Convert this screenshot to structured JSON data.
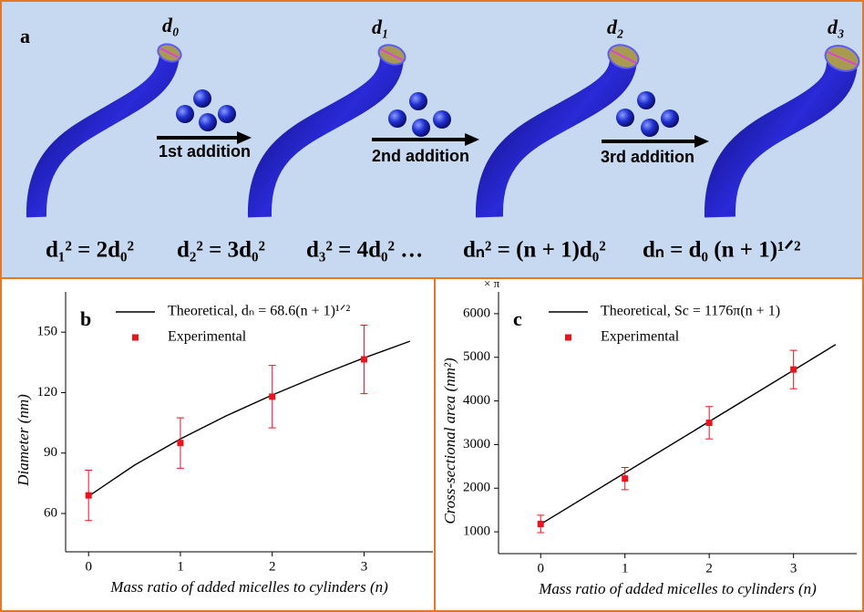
{
  "panel_a": {
    "label": "a",
    "diameters": [
      "d₀",
      "d₁",
      "d₂",
      "d₃"
    ],
    "steps": [
      "1st addition",
      "2nd addition",
      "3rd addition"
    ],
    "equations": [
      "d₁² = 2d₀²",
      "d₂² = 3d₀²",
      "d₃² = 4d₀² …",
      "dₙ² = (n + 1)d₀²",
      "dₙ = d₀ (n + 1)¹ᐟ²"
    ]
  },
  "chart_data": [
    {
      "type": "line",
      "label": "b",
      "xlabel": "Mass ratio of added micelles to cylinders (n)",
      "ylabel": "Diameter (nm)",
      "xlim": [
        -0.25,
        3.75
      ],
      "xticks": [
        0,
        1,
        2,
        3
      ],
      "ylim": [
        41,
        170
      ],
      "yticks": [
        60,
        90,
        120,
        150
      ],
      "series": [
        {
          "name": "Theoretical, dₙ = 68.6(n + 1)¹ᐟ²",
          "type": "line",
          "color": "#000000",
          "x": [
            0,
            0.5,
            1,
            1.5,
            2,
            2.5,
            3,
            3.5
          ],
          "values": [
            68.6,
            84.0,
            97.0,
            108.5,
            118.8,
            128.3,
            137.2,
            145.5
          ]
        },
        {
          "name": "Experimental",
          "type": "scatter",
          "color": "#e8141e",
          "x": [
            0,
            1,
            2,
            3
          ],
          "values": [
            69,
            95,
            118,
            136.5
          ],
          "errors": [
            12.5,
            12.5,
            15.5,
            17
          ]
        }
      ]
    },
    {
      "type": "line",
      "label": "c",
      "xlabel": "Mass ratio of added micelles to cylinders (n)",
      "ylabel": "Cross-sectional area (nm²)",
      "unit_note": "× π",
      "xlim": [
        -0.5,
        3.75
      ],
      "xticks": [
        0,
        1,
        2,
        3
      ],
      "ylim": [
        500,
        6500
      ],
      "yticks": [
        1000,
        2000,
        3000,
        4000,
        5000,
        6000
      ],
      "series": [
        {
          "name": "Theoretical, Sc = 1176π(n + 1)",
          "type": "line",
          "color": "#000000",
          "x": [
            0,
            3.5
          ],
          "values": [
            1176,
            5292
          ]
        },
        {
          "name": "Experimental",
          "type": "scatter",
          "color": "#e8141e",
          "x": [
            0,
            1,
            2,
            3
          ],
          "values": [
            1180,
            2220,
            3500,
            4720
          ],
          "errors": [
            200,
            255,
            370,
            440
          ]
        }
      ]
    }
  ]
}
